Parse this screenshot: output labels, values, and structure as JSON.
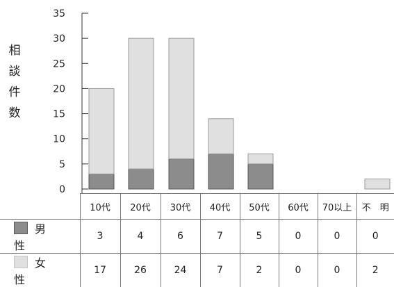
{
  "chart_data": {
    "type": "bar",
    "stacked": true,
    "title": "",
    "ylabel": "相談件数",
    "xlabel": "",
    "ylim": [
      0,
      35
    ],
    "yticks": [
      0,
      5,
      10,
      15,
      20,
      25,
      30,
      35
    ],
    "categories": [
      "10代",
      "20代",
      "30代",
      "40代",
      "50代",
      "60代",
      "70以上",
      "不　明"
    ],
    "series": [
      {
        "name": "男　性",
        "values": [
          3,
          4,
          6,
          7,
          5,
          0,
          0,
          0
        ],
        "color": "#8c8c8c"
      },
      {
        "name": "女　性",
        "values": [
          17,
          26,
          24,
          7,
          2,
          0,
          0,
          2
        ],
        "color": "#e0e0e0"
      }
    ],
    "legend": "table-left",
    "grid": false
  }
}
